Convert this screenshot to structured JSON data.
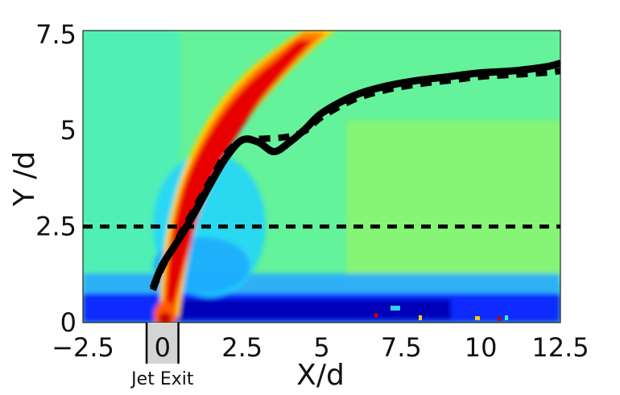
{
  "chart_data": {
    "type": "heatmap",
    "title": "",
    "xlabel": "X/d",
    "ylabel": "Y /d",
    "xlim": [
      -2.5,
      12.5
    ],
    "ylim": [
      0,
      7.6
    ],
    "x_ticks": [
      "−2.5",
      "0",
      "2.5",
      "5",
      "7.5",
      "10",
      "12.5"
    ],
    "x_tick_values": [
      -2.5,
      0,
      2.5,
      5,
      7.5,
      10,
      12.5
    ],
    "y_ticks": [
      "0",
      "2.5",
      "5",
      "7.5"
    ],
    "y_tick_values": [
      0,
      2.5,
      5,
      7.5
    ],
    "colormap": "jet",
    "grid": false,
    "annotation": {
      "label": "Jet Exit",
      "x_range": [
        -0.5,
        0.5
      ],
      "fill": "#d4d4d4"
    },
    "series": [
      {
        "style": "solid",
        "color": "#000000",
        "x": [
          -0.3,
          0.0,
          0.5,
          1.0,
          1.5,
          2.0,
          2.5,
          3.0,
          3.5,
          4.0,
          4.5,
          5.0,
          6.0,
          7.0,
          8.0,
          9.0,
          10.0,
          11.0,
          12.0,
          12.5
        ],
        "y": [
          0.9,
          1.5,
          2.15,
          2.85,
          3.6,
          4.3,
          4.75,
          4.7,
          4.45,
          4.7,
          5.05,
          5.45,
          5.9,
          6.15,
          6.3,
          6.4,
          6.5,
          6.55,
          6.65,
          6.75
        ]
      },
      {
        "style": "dashed",
        "color": "#000000",
        "x": [
          -0.3,
          0.0,
          0.5,
          1.0,
          1.5,
          2.0,
          2.5,
          3.0,
          3.5,
          4.0,
          4.5,
          5.0,
          6.0,
          7.0,
          8.0,
          9.0,
          10.0,
          11.0,
          12.0,
          12.5
        ],
        "y": [
          0.85,
          1.45,
          2.2,
          2.95,
          3.7,
          4.4,
          4.75,
          4.78,
          4.8,
          4.85,
          5.0,
          5.35,
          5.8,
          6.05,
          6.2,
          6.3,
          6.4,
          6.45,
          6.5,
          6.55
        ]
      },
      {
        "style": "dashed",
        "color": "#000000",
        "x": [
          -2.5,
          12.5
        ],
        "y": [
          2.5,
          2.5
        ]
      }
    ]
  }
}
